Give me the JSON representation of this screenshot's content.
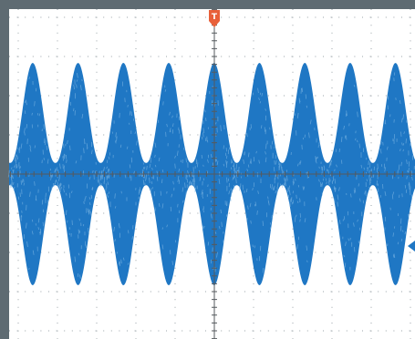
{
  "screen": {
    "background": "#ffffff",
    "border_color": "#5e6b72",
    "grid_color": "#9aa3a8",
    "axis_color": "#555a5e"
  },
  "waveform": {
    "color": "#1f77c4",
    "envelope_lobes": 9,
    "min_envelope_fraction": 0.1
  },
  "trigger_marker": {
    "label": "T",
    "color": "#e8603a",
    "icon": "trigger-position-icon"
  },
  "level_marker": {
    "color": "#1f77c4",
    "icon": "trigger-level-arrow-icon"
  }
}
